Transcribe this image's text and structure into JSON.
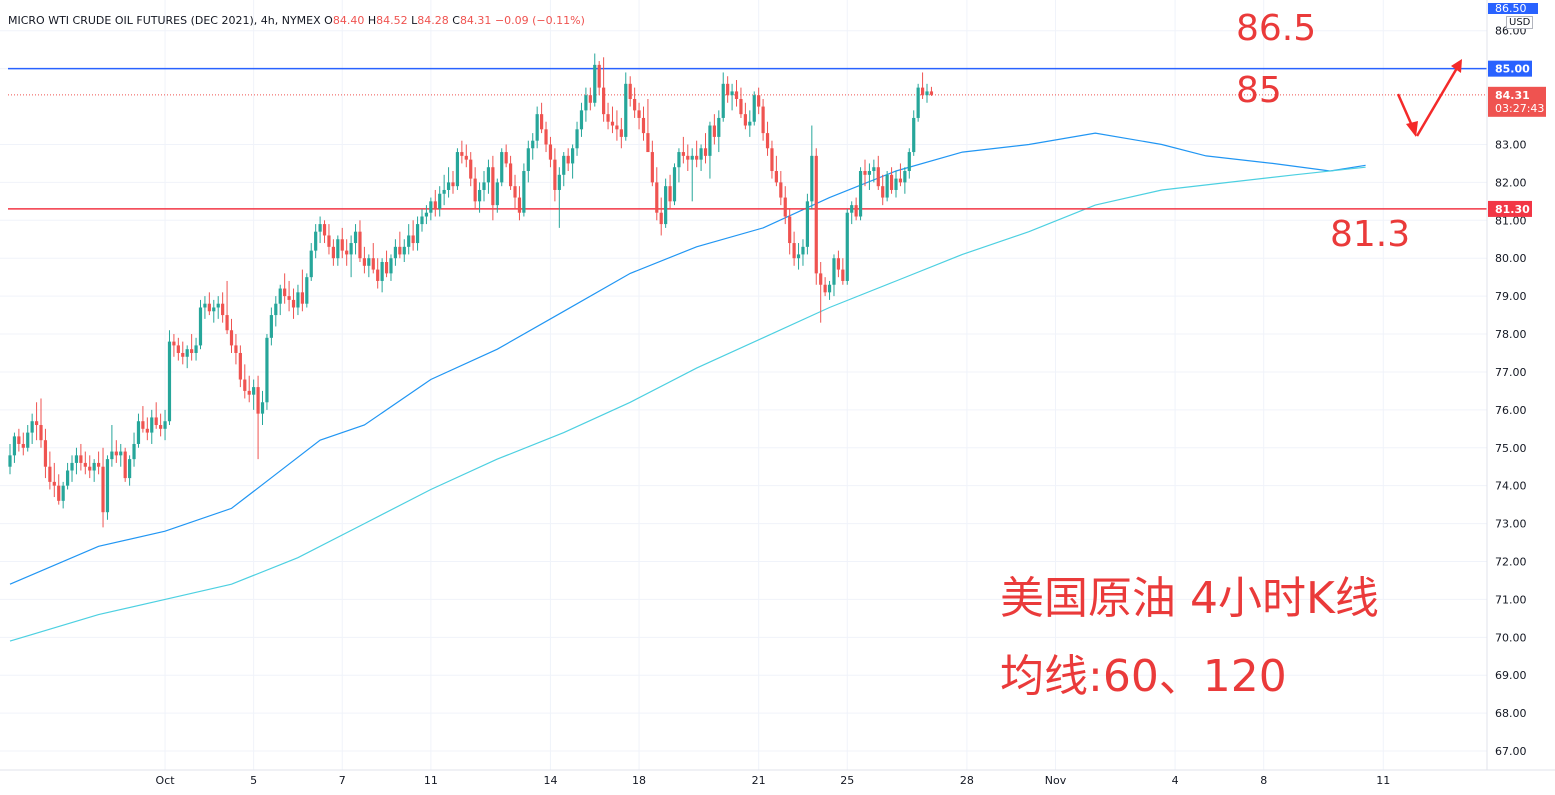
{
  "header": {
    "symbol": "MICRO WTI CRUDE OIL FUTURES (DEC 2021), 4h, NYMEX",
    "o_label": "O",
    "o_value": "84.40",
    "h_label": "H",
    "h_value": "84.52",
    "l_label": "L",
    "l_value": "84.28",
    "c_label": "C",
    "c_value": "84.31",
    "change": "−0.09 (−0.11%)",
    "currency": "USD"
  },
  "annotations": {
    "level_high": "86.5",
    "level_mid": "85",
    "level_low": "81.3",
    "caption_line1": "美国原油 4小时K线",
    "caption_line2": "均线:60、120"
  },
  "price_tags": {
    "top_partial": "86.50",
    "resistance": "85.00",
    "last_price": "84.31",
    "countdown": "03:27:43",
    "support": "81.30"
  },
  "colors": {
    "up": "#26a69a",
    "down": "#ef5350",
    "resistance_line": "#2962ff",
    "support_line": "#f23645",
    "ma60": "#2196f3",
    "ma120": "#4dd0e1",
    "annotation": "#ea3a3a"
  },
  "chart_data": {
    "type": "candlestick",
    "ylim": [
      66.5,
      86.6
    ],
    "yticks": [
      86.0,
      85.0,
      83.0,
      82.0,
      81.0,
      80.0,
      79.0,
      78.0,
      77.0,
      76.0,
      75.0,
      74.0,
      73.0,
      72.0,
      71.0,
      70.0,
      69.0,
      68.0,
      67.0
    ],
    "x_labels": [
      {
        "label": "Oct",
        "bar": 35
      },
      {
        "label": "5",
        "bar": 55
      },
      {
        "label": "7",
        "bar": 75
      },
      {
        "label": "11",
        "bar": 95
      },
      {
        "label": "14",
        "bar": 122
      },
      {
        "label": "18",
        "bar": 142
      },
      {
        "label": "21",
        "bar": 169
      },
      {
        "label": "25",
        "bar": 189
      },
      {
        "label": "28",
        "bar": 216
      },
      {
        "label": "Nov",
        "bar": 236
      },
      {
        "label": "4",
        "bar": 263
      },
      {
        "label": "8",
        "bar": 283
      },
      {
        "label": "11",
        "bar": 310
      }
    ],
    "horizontal_lines": [
      {
        "price": 85.0,
        "label": "85.00"
      },
      {
        "price": 81.3,
        "label": "81.30"
      }
    ],
    "last_price": 84.31,
    "moving_averages": [
      {
        "name": "MA60",
        "points": [
          [
            0,
            71.4
          ],
          [
            20,
            72.4
          ],
          [
            35,
            72.8
          ],
          [
            50,
            73.4
          ],
          [
            60,
            74.3
          ],
          [
            70,
            75.2
          ],
          [
            80,
            75.6
          ],
          [
            95,
            76.8
          ],
          [
            110,
            77.6
          ],
          [
            125,
            78.6
          ],
          [
            140,
            79.6
          ],
          [
            155,
            80.3
          ],
          [
            170,
            80.8
          ],
          [
            185,
            81.6
          ],
          [
            200,
            82.3
          ],
          [
            215,
            82.8
          ],
          [
            230,
            83.0
          ],
          [
            245,
            83.3
          ],
          [
            260,
            83.0
          ],
          [
            270,
            82.7
          ],
          [
            285,
            82.5
          ],
          [
            298,
            82.3
          ],
          [
            306,
            82.45
          ]
        ]
      },
      {
        "name": "MA120",
        "points": [
          [
            0,
            69.9
          ],
          [
            20,
            70.6
          ],
          [
            35,
            71.0
          ],
          [
            50,
            71.4
          ],
          [
            65,
            72.1
          ],
          [
            80,
            73.0
          ],
          [
            95,
            73.9
          ],
          [
            110,
            74.7
          ],
          [
            125,
            75.4
          ],
          [
            140,
            76.2
          ],
          [
            155,
            77.1
          ],
          [
            170,
            77.9
          ],
          [
            185,
            78.7
          ],
          [
            200,
            79.4
          ],
          [
            215,
            80.1
          ],
          [
            230,
            80.7
          ],
          [
            245,
            81.4
          ],
          [
            260,
            81.8
          ],
          [
            275,
            82.0
          ],
          [
            290,
            82.2
          ],
          [
            306,
            82.4
          ]
        ]
      }
    ],
    "ohlc": [
      [
        74.5,
        75.1,
        74.3,
        74.8
      ],
      [
        74.8,
        75.4,
        74.6,
        75.3
      ],
      [
        75.3,
        75.5,
        74.9,
        75.1
      ],
      [
        75.1,
        75.4,
        74.8,
        75.0
      ],
      [
        75.0,
        75.6,
        74.9,
        75.4
      ],
      [
        75.4,
        75.9,
        75.1,
        75.7
      ],
      [
        75.7,
        76.2,
        75.2,
        75.6
      ],
      [
        75.6,
        76.3,
        75.0,
        75.2
      ],
      [
        75.2,
        75.5,
        74.2,
        74.5
      ],
      [
        74.5,
        74.9,
        73.9,
        74.1
      ],
      [
        74.1,
        74.6,
        73.7,
        74.0
      ],
      [
        74.0,
        74.3,
        73.5,
        73.6
      ],
      [
        73.6,
        74.1,
        73.4,
        74.0
      ],
      [
        74.0,
        74.6,
        73.9,
        74.4
      ],
      [
        74.4,
        74.8,
        74.1,
        74.6
      ],
      [
        74.6,
        75.0,
        74.3,
        74.8
      ],
      [
        74.8,
        75.1,
        74.4,
        74.6
      ],
      [
        74.6,
        74.9,
        74.3,
        74.5
      ],
      [
        74.5,
        74.8,
        74.2,
        74.4
      ],
      [
        74.4,
        74.7,
        74.1,
        74.6
      ],
      [
        74.6,
        74.9,
        74.3,
        74.5
      ],
      [
        74.5,
        75.0,
        72.9,
        73.3
      ],
      [
        73.3,
        74.8,
        73.1,
        74.7
      ],
      [
        74.7,
        75.6,
        74.5,
        74.9
      ],
      [
        74.9,
        75.2,
        74.6,
        74.8
      ],
      [
        74.8,
        75.1,
        74.5,
        74.9
      ],
      [
        74.9,
        75.0,
        74.1,
        74.2
      ],
      [
        74.2,
        74.8,
        74.0,
        74.7
      ],
      [
        74.7,
        75.4,
        74.5,
        75.1
      ],
      [
        75.1,
        75.9,
        75.0,
        75.7
      ],
      [
        75.7,
        76.1,
        75.4,
        75.5
      ],
      [
        75.5,
        75.8,
        75.2,
        75.4
      ],
      [
        75.4,
        76.0,
        75.1,
        75.8
      ],
      [
        75.8,
        76.2,
        75.5,
        75.6
      ],
      [
        75.6,
        75.9,
        75.3,
        75.5
      ],
      [
        75.5,
        76.0,
        75.2,
        75.7
      ],
      [
        75.7,
        78.1,
        75.6,
        77.8
      ],
      [
        77.8,
        78.0,
        77.4,
        77.7
      ],
      [
        77.7,
        77.9,
        77.3,
        77.5
      ],
      [
        77.5,
        77.8,
        77.2,
        77.4
      ],
      [
        77.4,
        77.7,
        77.1,
        77.6
      ],
      [
        77.6,
        78.0,
        77.3,
        77.5
      ],
      [
        77.5,
        77.9,
        77.3,
        77.7
      ],
      [
        77.7,
        78.9,
        77.6,
        78.7
      ],
      [
        78.7,
        79.0,
        78.4,
        78.8
      ],
      [
        78.8,
        79.1,
        78.5,
        78.6
      ],
      [
        78.6,
        78.9,
        78.3,
        78.7
      ],
      [
        78.7,
        79.0,
        78.4,
        78.8
      ],
      [
        78.8,
        79.1,
        78.3,
        78.5
      ],
      [
        78.5,
        79.4,
        78.0,
        78.1
      ],
      [
        78.1,
        78.4,
        77.5,
        77.7
      ],
      [
        77.7,
        78.0,
        77.2,
        77.5
      ],
      [
        77.5,
        77.7,
        76.6,
        76.8
      ],
      [
        76.8,
        77.2,
        76.3,
        76.5
      ],
      [
        76.5,
        76.9,
        76.2,
        76.4
      ],
      [
        76.4,
        76.8,
        76.0,
        76.6
      ],
      [
        76.6,
        76.9,
        74.7,
        75.9
      ],
      [
        75.9,
        76.5,
        75.6,
        76.2
      ],
      [
        76.2,
        78.0,
        76.0,
        77.9
      ],
      [
        77.9,
        78.7,
        77.7,
        78.5
      ],
      [
        78.5,
        79.0,
        78.2,
        78.8
      ],
      [
        78.8,
        79.3,
        78.5,
        79.2
      ],
      [
        79.2,
        79.6,
        78.8,
        79.0
      ],
      [
        79.0,
        79.4,
        78.6,
        78.9
      ],
      [
        78.9,
        79.2,
        78.4,
        78.7
      ],
      [
        78.7,
        79.3,
        78.5,
        79.1
      ],
      [
        79.1,
        79.7,
        78.6,
        78.8
      ],
      [
        78.8,
        79.6,
        78.7,
        79.5
      ],
      [
        79.5,
        80.4,
        79.4,
        80.2
      ],
      [
        80.2,
        80.9,
        80.0,
        80.7
      ],
      [
        80.7,
        81.1,
        80.4,
        80.9
      ],
      [
        80.9,
        81.0,
        80.4,
        80.6
      ],
      [
        80.6,
        80.9,
        80.1,
        80.3
      ],
      [
        80.3,
        80.5,
        79.8,
        80.0
      ],
      [
        80.0,
        80.6,
        79.8,
        80.5
      ],
      [
        80.5,
        80.8,
        80.0,
        80.2
      ],
      [
        80.2,
        80.5,
        79.8,
        80.1
      ],
      [
        80.1,
        80.6,
        79.5,
        80.4
      ],
      [
        80.4,
        80.9,
        80.1,
        80.7
      ],
      [
        80.7,
        81.0,
        79.9,
        80.0
      ],
      [
        80.0,
        80.3,
        79.6,
        79.8
      ],
      [
        79.8,
        80.1,
        79.5,
        80.0
      ],
      [
        80.0,
        80.4,
        79.6,
        79.7
      ],
      [
        79.7,
        80.0,
        79.2,
        79.4
      ],
      [
        79.4,
        80.0,
        79.1,
        79.9
      ],
      [
        79.9,
        80.2,
        79.5,
        79.6
      ],
      [
        79.6,
        80.1,
        79.4,
        80.0
      ],
      [
        80.0,
        80.5,
        79.8,
        80.3
      ],
      [
        80.3,
        80.7,
        80.0,
        80.1
      ],
      [
        80.1,
        80.5,
        79.9,
        80.3
      ],
      [
        80.3,
        80.9,
        80.1,
        80.6
      ],
      [
        80.6,
        81.0,
        80.2,
        80.4
      ],
      [
        80.4,
        81.1,
        80.2,
        80.9
      ],
      [
        80.9,
        81.3,
        80.7,
        81.1
      ],
      [
        81.1,
        81.4,
        80.9,
        81.2
      ],
      [
        81.2,
        81.6,
        81.0,
        81.5
      ],
      [
        81.5,
        81.8,
        81.1,
        81.3
      ],
      [
        81.3,
        81.9,
        81.1,
        81.7
      ],
      [
        81.7,
        82.2,
        81.4,
        81.8
      ],
      [
        81.8,
        82.4,
        81.6,
        82.0
      ],
      [
        82.0,
        82.3,
        81.7,
        81.9
      ],
      [
        81.9,
        82.9,
        81.8,
        82.8
      ],
      [
        82.8,
        83.1,
        82.5,
        82.7
      ],
      [
        82.7,
        83.0,
        82.4,
        82.6
      ],
      [
        82.6,
        82.8,
        81.9,
        82.1
      ],
      [
        82.1,
        82.4,
        81.3,
        81.5
      ],
      [
        81.5,
        82.0,
        81.2,
        81.8
      ],
      [
        81.8,
        82.3,
        81.5,
        82.0
      ],
      [
        82.0,
        82.6,
        81.7,
        82.4
      ],
      [
        82.4,
        82.7,
        81.0,
        81.4
      ],
      [
        81.4,
        82.1,
        81.2,
        82.0
      ],
      [
        82.0,
        82.9,
        81.9,
        82.8
      ],
      [
        82.8,
        83.0,
        82.4,
        82.5
      ],
      [
        82.5,
        82.7,
        81.8,
        81.9
      ],
      [
        81.9,
        82.2,
        81.3,
        81.6
      ],
      [
        81.6,
        81.9,
        81.0,
        81.2
      ],
      [
        81.2,
        82.5,
        81.1,
        82.3
      ],
      [
        82.3,
        83.1,
        82.0,
        82.9
      ],
      [
        82.9,
        83.3,
        82.6,
        83.1
      ],
      [
        83.1,
        84.0,
        82.9,
        83.8
      ],
      [
        83.8,
        84.1,
        83.3,
        83.4
      ],
      [
        83.4,
        83.6,
        82.8,
        83.0
      ],
      [
        83.0,
        83.2,
        82.4,
        82.6
      ],
      [
        82.6,
        82.9,
        81.5,
        81.8
      ],
      [
        81.8,
        82.4,
        80.8,
        82.2
      ],
      [
        82.2,
        82.8,
        81.9,
        82.7
      ],
      [
        82.7,
        82.9,
        82.3,
        82.5
      ],
      [
        82.5,
        83.0,
        82.1,
        82.9
      ],
      [
        82.9,
        83.6,
        82.7,
        83.4
      ],
      [
        83.4,
        84.1,
        83.2,
        83.9
      ],
      [
        83.9,
        84.5,
        83.6,
        84.3
      ],
      [
        84.3,
        84.5,
        83.9,
        84.1
      ],
      [
        84.1,
        85.4,
        84.0,
        85.1
      ],
      [
        85.1,
        85.2,
        84.3,
        84.5
      ],
      [
        84.5,
        85.3,
        83.6,
        83.8
      ],
      [
        83.8,
        84.1,
        83.4,
        83.6
      ],
      [
        83.6,
        84.0,
        83.3,
        83.5
      ],
      [
        83.5,
        83.9,
        83.1,
        83.4
      ],
      [
        83.4,
        83.7,
        82.9,
        83.2
      ],
      [
        83.2,
        84.9,
        83.1,
        84.6
      ],
      [
        84.6,
        84.8,
        84.0,
        84.2
      ],
      [
        84.2,
        84.5,
        83.7,
        83.9
      ],
      [
        83.9,
        84.1,
        83.4,
        83.7
      ],
      [
        83.7,
        84.0,
        83.1,
        83.3
      ],
      [
        83.3,
        84.2,
        82.9,
        82.8
      ],
      [
        82.8,
        83.1,
        81.9,
        82.0
      ],
      [
        82.0,
        82.4,
        81.0,
        81.2
      ],
      [
        81.2,
        81.6,
        80.6,
        80.9
      ],
      [
        80.9,
        82.1,
        80.8,
        81.9
      ],
      [
        81.9,
        82.2,
        81.3,
        81.5
      ],
      [
        81.5,
        82.5,
        81.4,
        82.4
      ],
      [
        82.4,
        82.9,
        82.0,
        82.8
      ],
      [
        82.8,
        83.2,
        82.5,
        82.7
      ],
      [
        82.7,
        83.0,
        82.3,
        82.6
      ],
      [
        82.6,
        82.9,
        81.5,
        82.7
      ],
      [
        82.7,
        83.1,
        82.4,
        82.6
      ],
      [
        82.6,
        83.0,
        82.3,
        82.9
      ],
      [
        82.9,
        83.3,
        82.5,
        82.7
      ],
      [
        82.7,
        83.6,
        82.1,
        83.5
      ],
      [
        83.5,
        83.8,
        83.0,
        83.2
      ],
      [
        83.2,
        83.9,
        82.8,
        83.7
      ],
      [
        83.7,
        84.9,
        83.6,
        84.6
      ],
      [
        84.6,
        84.8,
        84.1,
        84.3
      ],
      [
        84.3,
        84.6,
        83.9,
        84.4
      ],
      [
        84.4,
        84.7,
        84.0,
        84.2
      ],
      [
        84.2,
        84.5,
        83.7,
        83.8
      ],
      [
        83.8,
        84.1,
        83.4,
        83.5
      ],
      [
        83.5,
        83.9,
        83.2,
        83.6
      ],
      [
        83.6,
        84.4,
        83.5,
        84.3
      ],
      [
        84.3,
        84.5,
        83.8,
        84.0
      ],
      [
        84.0,
        84.2,
        83.1,
        83.3
      ],
      [
        83.3,
        83.6,
        82.7,
        82.9
      ],
      [
        82.9,
        83.1,
        82.1,
        82.3
      ],
      [
        82.3,
        82.7,
        81.9,
        82.0
      ],
      [
        82.0,
        82.3,
        81.4,
        81.6
      ],
      [
        81.6,
        81.9,
        80.9,
        81.1
      ],
      [
        81.1,
        81.3,
        80.1,
        80.4
      ],
      [
        80.4,
        80.7,
        79.8,
        80.0
      ],
      [
        80.0,
        80.4,
        79.7,
        80.1
      ],
      [
        80.1,
        80.5,
        79.8,
        80.3
      ],
      [
        80.3,
        81.7,
        80.1,
        81.5
      ],
      [
        81.5,
        83.5,
        81.3,
        82.7
      ],
      [
        82.7,
        82.9,
        79.3,
        79.6
      ],
      [
        79.6,
        79.9,
        78.3,
        79.3
      ],
      [
        79.3,
        79.5,
        79.0,
        79.1
      ],
      [
        79.1,
        79.4,
        78.9,
        79.3
      ],
      [
        79.3,
        80.1,
        79.0,
        80.0
      ],
      [
        80.0,
        80.2,
        79.5,
        79.7
      ],
      [
        79.7,
        80.0,
        79.3,
        79.4
      ],
      [
        79.4,
        81.3,
        79.3,
        81.2
      ],
      [
        81.2,
        81.5,
        80.9,
        81.4
      ],
      [
        81.4,
        81.6,
        81.0,
        81.1
      ],
      [
        81.1,
        82.4,
        81.0,
        82.3
      ],
      [
        82.3,
        82.6,
        81.9,
        82.2
      ],
      [
        82.2,
        82.5,
        81.8,
        82.3
      ],
      [
        82.3,
        82.6,
        82.0,
        82.4
      ],
      [
        82.4,
        82.7,
        81.8,
        81.9
      ],
      [
        81.9,
        82.2,
        81.4,
        81.6
      ],
      [
        81.6,
        82.3,
        81.5,
        82.2
      ],
      [
        82.2,
        82.4,
        81.7,
        81.8
      ],
      [
        81.8,
        82.3,
        81.6,
        82.1
      ],
      [
        82.1,
        82.5,
        81.9,
        82.0
      ],
      [
        82.0,
        82.4,
        81.7,
        82.3
      ],
      [
        82.3,
        82.9,
        82.1,
        82.8
      ],
      [
        82.8,
        83.9,
        82.7,
        83.7
      ],
      [
        83.7,
        84.6,
        83.6,
        84.5
      ],
      [
        84.5,
        84.9,
        84.2,
        84.3
      ],
      [
        84.3,
        84.6,
        84.1,
        84.4
      ],
      [
        84.4,
        84.52,
        84.28,
        84.31
      ]
    ]
  }
}
